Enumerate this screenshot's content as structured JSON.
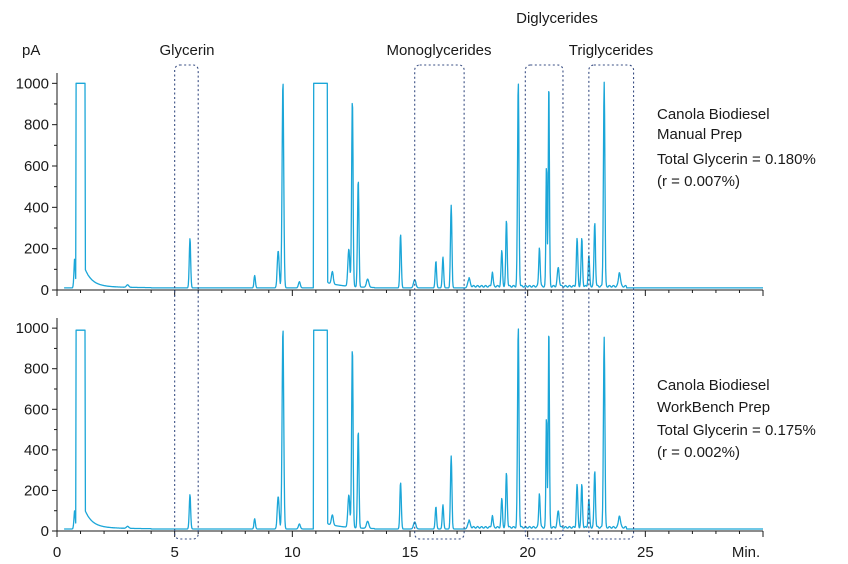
{
  "chart_data": {
    "type": "line",
    "yunit": "pA",
    "xunit": "Min.",
    "xlim": [
      0,
      30
    ],
    "ylim": [
      0,
      1050
    ],
    "xticks": [
      0,
      5,
      10,
      15,
      20,
      25
    ],
    "yticks": [
      0,
      200,
      400,
      600,
      800,
      1000
    ],
    "group_labels": {
      "glycerin": "Glycerin",
      "monoglycerides": "Monoglycerides",
      "diglycerides": "Diglycerides",
      "triglycerides": "Triglycerides"
    },
    "regions": [
      {
        "id": "glycerin",
        "x": [
          5.0,
          6.0
        ]
      },
      {
        "id": "monoglycerides",
        "x": [
          15.2,
          17.3
        ]
      },
      {
        "id": "diglycerides",
        "x": [
          19.9,
          21.5
        ]
      },
      {
        "id": "triglycerides",
        "x": [
          22.6,
          24.5
        ]
      }
    ],
    "panels": [
      {
        "annotation": [
          "Canola Biodiesel",
          "Manual Prep",
          "Total Glycerin = 0.180%",
          "(r = 0.007%)"
        ],
        "baseline": 10,
        "peaks": [
          [
            0.75,
            140,
            0.03
          ],
          [
            3.0,
            12,
            0.05
          ],
          [
            5.65,
            240,
            0.03
          ],
          [
            8.4,
            60,
            0.03
          ],
          [
            9.4,
            180,
            0.04
          ],
          [
            9.6,
            1000,
            0.035
          ],
          [
            10.3,
            30,
            0.04
          ],
          [
            11.4,
            120,
            0.04
          ],
          [
            11.7,
            60,
            0.04
          ],
          [
            12.4,
            180,
            0.04
          ],
          [
            12.55,
            910,
            0.03
          ],
          [
            12.8,
            520,
            0.03
          ],
          [
            13.2,
            40,
            0.05
          ],
          [
            14.6,
            260,
            0.03
          ],
          [
            15.2,
            40,
            0.05
          ],
          [
            16.1,
            130,
            0.03
          ],
          [
            16.4,
            150,
            0.03
          ],
          [
            16.75,
            400,
            0.03
          ],
          [
            17.5,
            40,
            0.05
          ],
          [
            18.5,
            70,
            0.03
          ],
          [
            18.9,
            170,
            0.03
          ],
          [
            19.1,
            320,
            0.03
          ],
          [
            19.6,
            990,
            0.03
          ],
          [
            20.5,
            190,
            0.03
          ],
          [
            20.8,
            590,
            0.025
          ],
          [
            20.9,
            990,
            0.025
          ],
          [
            21.3,
            90,
            0.04
          ],
          [
            22.1,
            230,
            0.03
          ],
          [
            22.3,
            230,
            0.03
          ],
          [
            22.6,
            150,
            0.03
          ],
          [
            22.85,
            310,
            0.03
          ],
          [
            23.25,
            990,
            0.03
          ],
          [
            23.9,
            70,
            0.04
          ]
        ],
        "plateaus": [
          [
            0.8,
            1.2,
            1000
          ],
          [
            10.9,
            11.5,
            1000
          ]
        ]
      },
      {
        "annotation": [
          "Canola Biodiesel",
          "WorkBench Prep",
          "Total Glycerin = 0.175%",
          "(r = 0.002%)"
        ],
        "baseline": 10,
        "peaks": [
          [
            0.75,
            90,
            0.03
          ],
          [
            3.0,
            10,
            0.05
          ],
          [
            5.65,
            170,
            0.03
          ],
          [
            8.4,
            50,
            0.03
          ],
          [
            9.4,
            160,
            0.04
          ],
          [
            9.6,
            990,
            0.035
          ],
          [
            10.3,
            25,
            0.04
          ],
          [
            11.4,
            100,
            0.04
          ],
          [
            11.7,
            50,
            0.04
          ],
          [
            12.4,
            160,
            0.04
          ],
          [
            12.55,
            890,
            0.03
          ],
          [
            12.8,
            480,
            0.03
          ],
          [
            13.2,
            35,
            0.05
          ],
          [
            14.6,
            230,
            0.03
          ],
          [
            15.2,
            35,
            0.05
          ],
          [
            16.1,
            110,
            0.03
          ],
          [
            16.4,
            120,
            0.03
          ],
          [
            16.75,
            360,
            0.03
          ],
          [
            17.5,
            35,
            0.05
          ],
          [
            18.5,
            60,
            0.03
          ],
          [
            18.9,
            140,
            0.03
          ],
          [
            19.1,
            270,
            0.03
          ],
          [
            19.6,
            990,
            0.03
          ],
          [
            20.5,
            170,
            0.03
          ],
          [
            20.8,
            550,
            0.025
          ],
          [
            20.9,
            990,
            0.025
          ],
          [
            21.3,
            80,
            0.04
          ],
          [
            22.1,
            210,
            0.03
          ],
          [
            22.3,
            210,
            0.03
          ],
          [
            22.6,
            140,
            0.03
          ],
          [
            22.85,
            280,
            0.03
          ],
          [
            23.25,
            940,
            0.03
          ],
          [
            23.9,
            60,
            0.04
          ]
        ],
        "plateaus": [
          [
            0.8,
            1.2,
            990
          ],
          [
            10.9,
            11.5,
            990
          ]
        ]
      }
    ]
  }
}
